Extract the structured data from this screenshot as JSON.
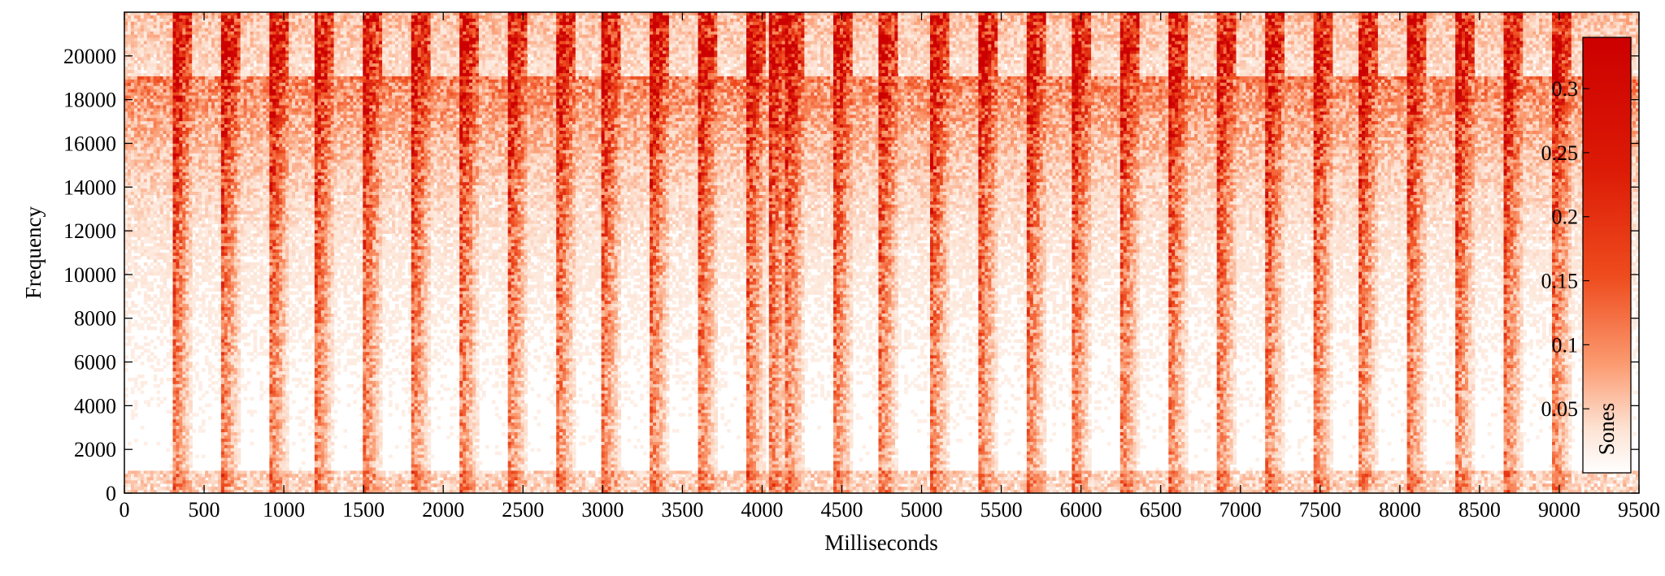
{
  "chart_data": {
    "type": "heatmap",
    "title": "",
    "xlabel": "Milliseconds",
    "ylabel": "Frequency",
    "xlim": [
      0,
      9500
    ],
    "ylim": [
      0,
      22000
    ],
    "x_ticks": [
      0,
      500,
      1000,
      1500,
      2000,
      2500,
      3000,
      3500,
      4000,
      4500,
      5000,
      5500,
      6000,
      6500,
      7000,
      7500,
      8000,
      8500,
      9000,
      9500
    ],
    "y_ticks": [
      0,
      2000,
      4000,
      6000,
      8000,
      10000,
      12000,
      14000,
      16000,
      18000,
      20000
    ],
    "grid": false,
    "colormap": [
      "#ffffff",
      "#ffe6d6",
      "#fb9a70",
      "#ee4c1e",
      "#cc0000"
    ],
    "colorbar": {
      "label": "Sones",
      "range": [
        0,
        0.34
      ],
      "ticks": [
        0.05,
        0.1,
        0.15,
        0.2,
        0.25,
        0.3
      ],
      "placement": "inside-right"
    },
    "onsets_ms": [
      300,
      600,
      900,
      1200,
      1500,
      1800,
      2100,
      2400,
      2700,
      3000,
      3300,
      3600,
      3900,
      4050,
      4150,
      4450,
      4720,
      5050,
      5350,
      5650,
      5950,
      6250,
      6550,
      6850,
      7150,
      7450,
      7750,
      8050,
      8350,
      8650,
      8950
    ]
  }
}
